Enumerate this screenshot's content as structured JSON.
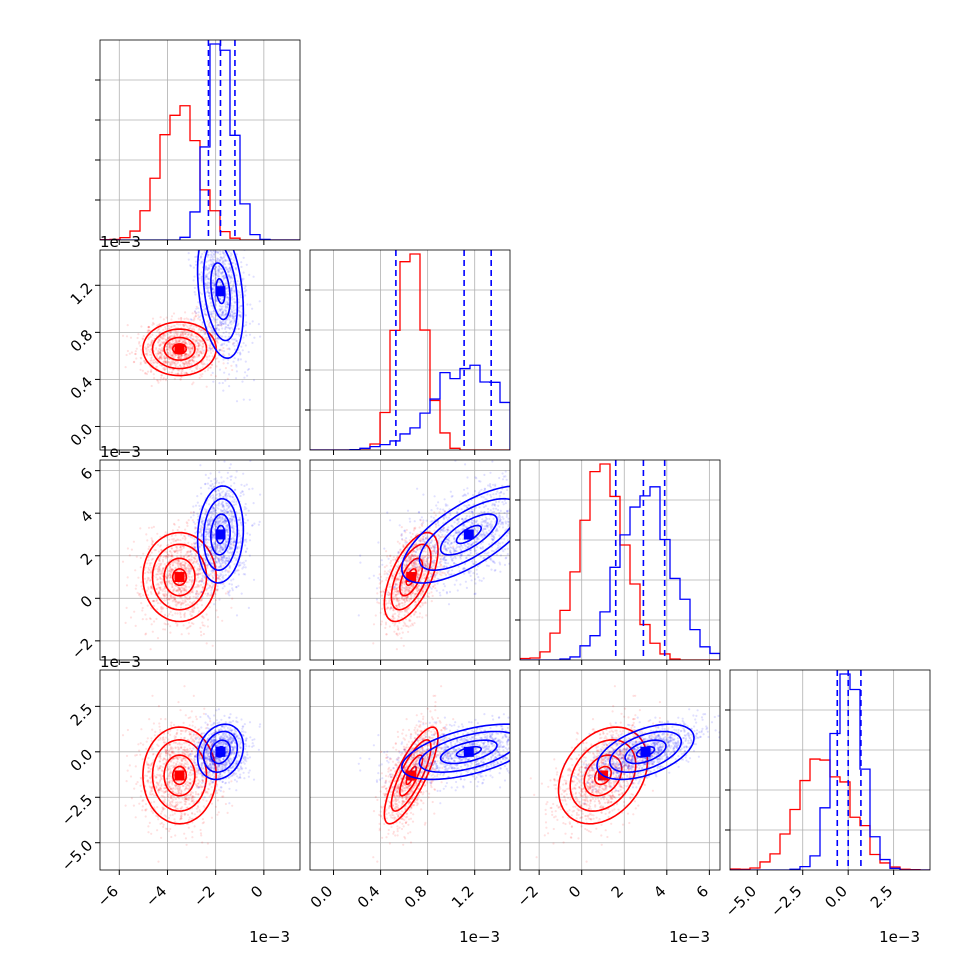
{
  "chart_data": {
    "type": "scatter",
    "subtype": "corner",
    "dimensions": 4,
    "grid": true,
    "series": [
      {
        "name": "",
        "color": "#ff0000",
        "means": [
          -3.5,
          0.66,
          1.0,
          -1.3
        ],
        "stds": [
          0.8,
          0.12,
          1.1,
          1.4
        ],
        "corr": [
          [
            1,
            0,
            0,
            0
          ],
          [
            0,
            1,
            0.6,
            0.8
          ],
          [
            0,
            0.6,
            1,
            0.3
          ],
          [
            0,
            0.8,
            0.3,
            1
          ]
        ]
      },
      {
        "name": "",
        "color": "#0000ff",
        "means": [
          -1.8,
          1.15,
          3.0,
          0.0
        ],
        "stds": [
          0.5,
          0.3,
          1.2,
          0.8
        ],
        "corr": [
          [
            1,
            -0.3,
            0.1,
            0.2
          ],
          [
            -0.3,
            1,
            0.7,
            0.55
          ],
          [
            0.1,
            0.7,
            1,
            0.5
          ],
          [
            0.2,
            0.55,
            0.5,
            1
          ]
        ]
      }
    ],
    "quantile_lines": {
      "color": "#0000ff",
      "dim0": [
        -2.3,
        -1.8,
        -1.2
      ],
      "dim1": [
        0.53,
        1.11,
        1.34
      ],
      "dim2": [
        1.6,
        2.9,
        3.9
      ],
      "dim3": [
        -0.6,
        0.0,
        0.7
      ]
    },
    "axes": [
      {
        "range": [
          -6.8,
          1.5
        ],
        "ticks": [
          -6,
          -4,
          -2,
          0
        ],
        "tick_labels": [
          "−6",
          "−4",
          "−2",
          "0"
        ],
        "offset_label": "1e−3"
      },
      {
        "range": [
          -0.2,
          1.5
        ],
        "ticks": [
          0.0,
          0.4,
          0.8,
          1.2
        ],
        "tick_labels": [
          "0.0",
          "0.4",
          "0.8",
          "1.2"
        ],
        "offset_label": "1e−3"
      },
      {
        "range": [
          -2.9,
          6.5
        ],
        "ticks": [
          -2,
          0,
          2,
          4,
          6
        ],
        "tick_labels": [
          "−2",
          "0",
          "2",
          "4",
          "6"
        ],
        "offset_label": "1e−3"
      },
      {
        "range": [
          -6.5,
          4.5
        ],
        "ticks": [
          -5.0,
          -2.5,
          0.0,
          2.5
        ],
        "tick_labels": [
          "−5.0",
          "−2.5",
          "0.0",
          "2.5"
        ],
        "offset_label": "1e−3"
      }
    ]
  }
}
